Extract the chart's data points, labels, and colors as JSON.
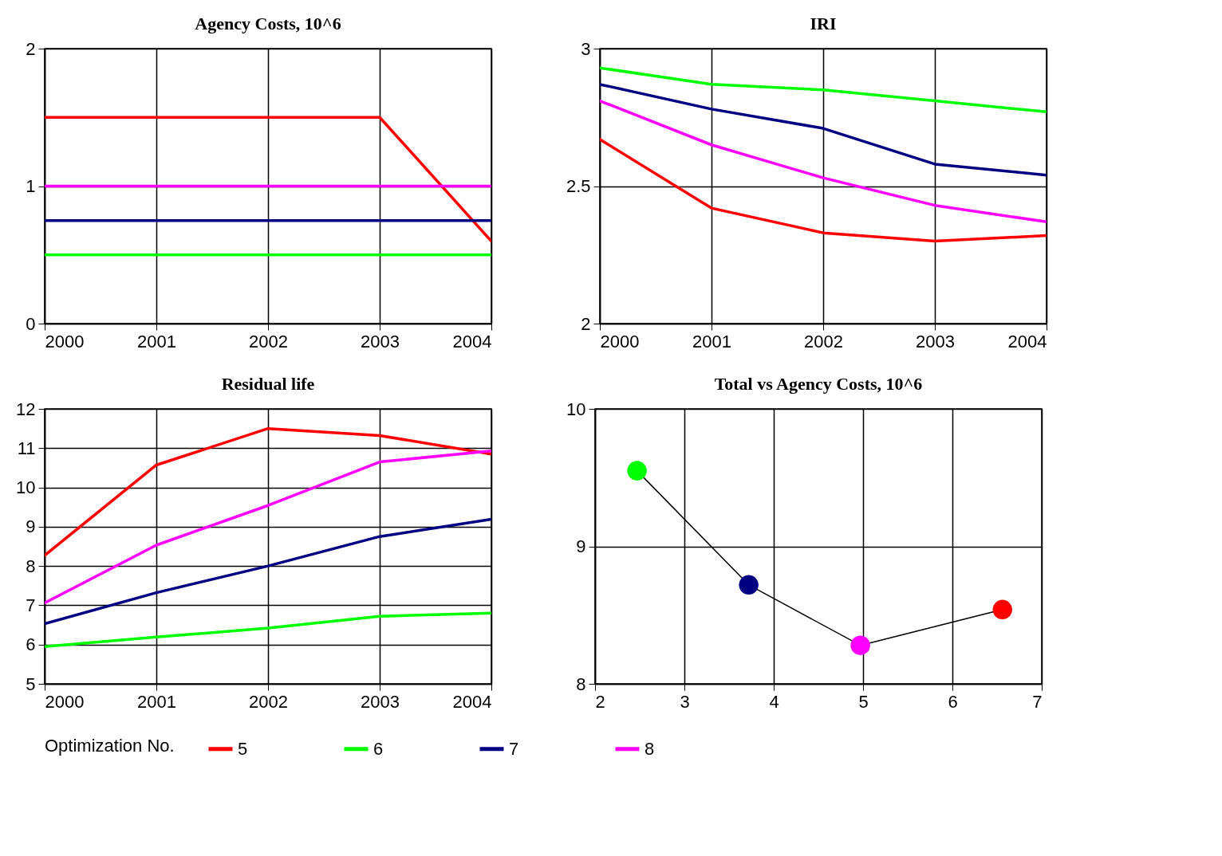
{
  "chart_data": [
    {
      "type": "line",
      "title": "Agency Costs, 10^6",
      "x": [
        2000,
        2001,
        2002,
        2003,
        2004
      ],
      "xlim": [
        2000,
        2004
      ],
      "xticks": [
        2000,
        2001,
        2002,
        2003,
        2004
      ],
      "ylim": [
        0,
        2
      ],
      "yticks": [
        0,
        1,
        2
      ],
      "grid": true,
      "legend": "bottom",
      "legend_title": "Optimization No.",
      "series": [
        {
          "name": "5",
          "color": "#ff0000",
          "values": [
            1.5,
            1.5,
            1.5,
            1.5,
            0.6
          ]
        },
        {
          "name": "6",
          "color": "#00ff00",
          "values": [
            0.5,
            0.5,
            0.5,
            0.5,
            0.5
          ]
        },
        {
          "name": "7",
          "color": "#000080",
          "values": [
            0.75,
            0.75,
            0.75,
            0.75,
            0.75
          ]
        },
        {
          "name": "8",
          "color": "#ff00ff",
          "values": [
            1,
            1,
            1,
            1,
            1
          ]
        }
      ]
    },
    {
      "type": "line",
      "title": "IRI",
      "x": [
        2000,
        2001,
        2002,
        2003,
        2004
      ],
      "xlim": [
        2000,
        2004
      ],
      "xticks": [
        2000,
        2001,
        2002,
        2003,
        2004
      ],
      "ylim": [
        2,
        3
      ],
      "yticks": [
        2,
        2.5,
        3
      ],
      "grid": true,
      "series": [
        {
          "color": "#ff0000",
          "values": [
            2.67,
            2.42,
            2.33,
            2.3,
            2.32
          ]
        },
        {
          "color": "#00ff00",
          "values": [
            2.93,
            2.87,
            2.85,
            2.81,
            2.77
          ]
        },
        {
          "color": "#000080",
          "values": [
            2.87,
            2.78,
            2.71,
            2.58,
            2.54
          ]
        },
        {
          "color": "#ff00ff",
          "values": [
            2.81,
            2.65,
            2.53,
            2.43,
            2.37
          ]
        }
      ]
    },
    {
      "type": "line",
      "title": "Residual life",
      "x": [
        2000,
        2001,
        2002,
        2003,
        2004
      ],
      "xlim": [
        2000,
        2004
      ],
      "xticks": [
        2000,
        2001,
        2002,
        2003,
        2004
      ],
      "ylim": [
        5,
        12
      ],
      "yticks": [
        5,
        6,
        7,
        8,
        9,
        10,
        11,
        12
      ],
      "grid": true,
      "series": [
        {
          "color": "#ff0000",
          "values": [
            8.27,
            10.57,
            11.5,
            11.32,
            10.85
          ]
        },
        {
          "color": "#00ff00",
          "values": [
            5.95,
            6.19,
            6.42,
            6.72,
            6.8
          ]
        },
        {
          "color": "#000080",
          "values": [
            6.53,
            7.32,
            8.0,
            8.75,
            9.19
          ]
        },
        {
          "color": "#ff00ff",
          "values": [
            7.06,
            8.53,
            9.54,
            10.65,
            10.93
          ]
        }
      ]
    },
    {
      "type": "line",
      "title": "Total vs Agency Costs, 10^6",
      "x": [
        2.47,
        3.72,
        4.97,
        6.56
      ],
      "values": [
        9.55,
        8.72,
        8.28,
        8.54
      ],
      "color": "#000000",
      "colors": [
        "#00ff00",
        "#000080",
        "#ff00ff",
        "#ff0000"
      ],
      "marker": "circle",
      "xlim": [
        2,
        7
      ],
      "xticks": [
        2,
        3,
        4,
        5,
        6,
        7
      ],
      "ylim": [
        8,
        10
      ],
      "yticks": [
        8,
        9,
        10
      ],
      "grid": true
    }
  ]
}
